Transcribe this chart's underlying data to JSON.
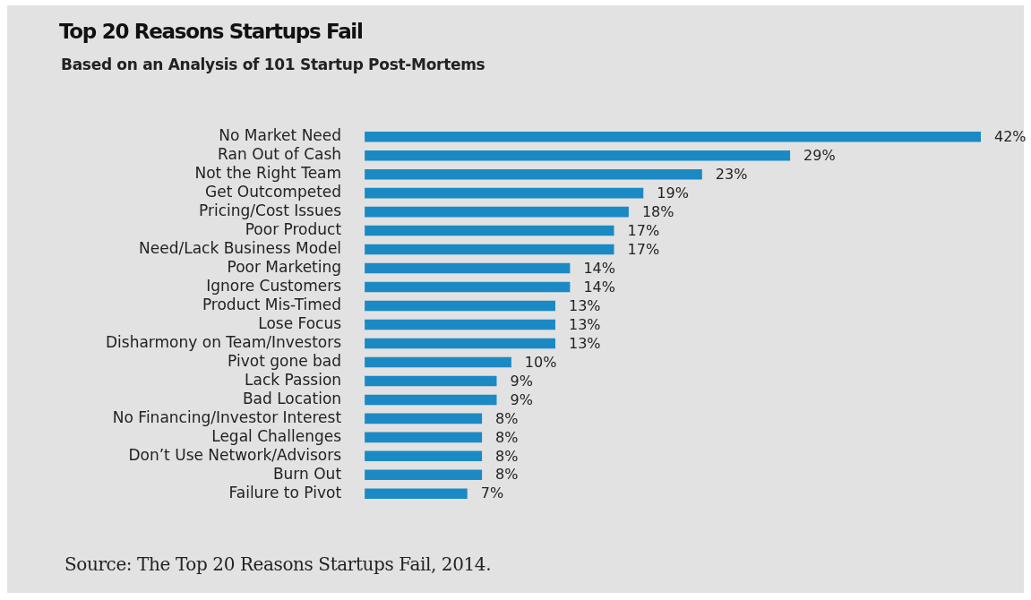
{
  "chart_data": {
    "type": "bar",
    "title": "Top 20 Reasons Startups Fail",
    "subtitle": "Based on an Analysis of 101 Startup Post-Mortems",
    "orientation": "horizontal",
    "categories": [
      "No Market Need",
      "Ran Out of Cash",
      "Not the Right Team",
      "Get Outcompeted",
      "Pricing/Cost Issues",
      "Poor Product",
      "Need/Lack Business Model",
      "Poor Marketing",
      "Ignore Customers",
      "Product Mis-Timed",
      "Lose Focus",
      "Disharmony on Team/Investors",
      "Pivot gone bad",
      "Lack Passion",
      "Bad Location",
      "No Financing/Investor Interest",
      "Legal Challenges",
      "Don’t Use Network/Advisors",
      "Burn Out",
      "Failure to Pivot"
    ],
    "values": [
      42,
      29,
      23,
      19,
      18,
      17,
      17,
      14,
      14,
      13,
      13,
      13,
      10,
      9,
      9,
      8,
      8,
      8,
      8,
      7
    ],
    "value_labels": [
      "42%",
      "29%",
      "23%",
      "19%",
      "18%",
      "17%",
      "17%",
      "14%",
      "14%",
      "13%",
      "13%",
      "13%",
      "10%",
      "9%",
      "9%",
      "8%",
      "8%",
      "8%",
      "8%",
      "7%"
    ],
    "color": "#1b8ac4",
    "legend": false,
    "annotations": [
      "Source: The Top 20 Reasons Startups Fail, 2014."
    ]
  }
}
